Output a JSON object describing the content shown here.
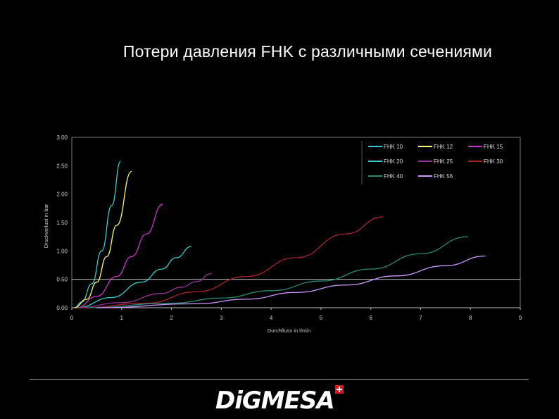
{
  "slide": {
    "title": "Потери давления FHK с различными сечениями"
  },
  "footer": {
    "logo_text": "DiGMESA"
  },
  "chart_data": {
    "type": "line",
    "xlabel": "Durchfluss in l/min",
    "ylabel": "Druckverlust in bar",
    "xlim": [
      0,
      9
    ],
    "ylim": [
      0,
      3
    ],
    "xticks": [
      "0",
      "1",
      "2",
      "3",
      "4",
      "5",
      "6",
      "7",
      "8",
      "9"
    ],
    "yticks": [
      "0.00",
      "0.50",
      "1.00",
      "1.50",
      "2.00",
      "2.50",
      "3.00"
    ],
    "grid": "horizontal line at 0.50",
    "legend_position": "top-right",
    "series": [
      {
        "name": "FHK 10",
        "color": "#33cccc",
        "x": [
          0.05,
          0.2,
          0.4,
          0.6,
          0.8,
          0.98
        ],
        "y": [
          0.0,
          0.1,
          0.42,
          1.0,
          1.8,
          2.58
        ]
      },
      {
        "name": "FHK 12",
        "color": "#ffff66",
        "x": [
          0.05,
          0.3,
          0.5,
          0.7,
          0.9,
          1.2
        ],
        "y": [
          0.0,
          0.15,
          0.45,
          0.9,
          1.45,
          2.4
        ]
      },
      {
        "name": "FHK 15",
        "color": "#cc33cc",
        "x": [
          0.1,
          0.5,
          0.9,
          1.2,
          1.5,
          1.82
        ],
        "y": [
          0.0,
          0.2,
          0.55,
          0.9,
          1.3,
          1.82
        ]
      },
      {
        "name": "FHK 20",
        "color": "#33cccc",
        "x": [
          0.1,
          0.8,
          1.4,
          1.8,
          2.1,
          2.4
        ],
        "y": [
          0.0,
          0.18,
          0.45,
          0.68,
          0.88,
          1.08
        ]
      },
      {
        "name": "FHK 25",
        "color": "#993399",
        "x": [
          0.1,
          1.0,
          1.8,
          2.2,
          2.5,
          2.8
        ],
        "y": [
          0.0,
          0.09,
          0.25,
          0.36,
          0.46,
          0.6
        ]
      },
      {
        "name": "FHK 30",
        "color": "#aa2222",
        "x": [
          0.2,
          1.5,
          2.5,
          3.5,
          4.5,
          5.5,
          6.25
        ],
        "y": [
          0.0,
          0.08,
          0.28,
          0.55,
          0.88,
          1.3,
          1.6
        ]
      },
      {
        "name": "FHK 40",
        "color": "#2a8a7a",
        "x": [
          0.3,
          2.0,
          3.0,
          4.0,
          5.0,
          6.0,
          7.0,
          7.95
        ],
        "y": [
          0.0,
          0.08,
          0.17,
          0.3,
          0.47,
          0.68,
          0.95,
          1.25
        ]
      },
      {
        "name": "FHK 56",
        "color": "#cc99ff",
        "x": [
          0.5,
          2.5,
          3.5,
          4.5,
          5.5,
          6.5,
          7.5,
          8.3
        ],
        "y": [
          0.0,
          0.07,
          0.15,
          0.27,
          0.4,
          0.56,
          0.74,
          0.91
        ]
      }
    ]
  }
}
